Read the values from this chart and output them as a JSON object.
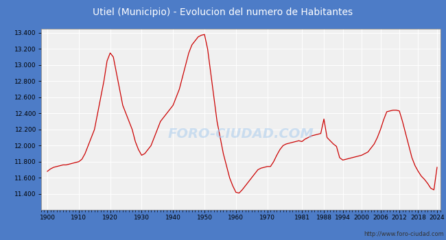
{
  "title": "Utiel (Municipio) - Evolucion del numero de Habitantes",
  "title_bg_color": "#4d7cc7",
  "title_font_color": "white",
  "title_fontsize": 10,
  "line_color": "#cc0000",
  "outer_bg_color": "#4d7cc7",
  "plot_bg_color": "#f0f0f0",
  "grid_color": "white",
  "footer_text": "http://www.foro-ciudad.com",
  "watermark": "FORO-CIUDAD.COM",
  "ylim": [
    11200,
    13450
  ],
  "ytick_labels": [
    "11.400",
    "11.600",
    "11.800",
    "12.000",
    "12.200",
    "12.400",
    "12.600",
    "12.800",
    "13.000",
    "13.200",
    "13.400"
  ],
  "ytick_values": [
    11400,
    11600,
    11800,
    12000,
    12200,
    12400,
    12600,
    12800,
    13000,
    13200,
    13400
  ],
  "xtick_labels": [
    "1900",
    "1910",
    "1920",
    "1930",
    "1940",
    "1950",
    "1960",
    "1970",
    "1981",
    "1988",
    "1994",
    "2000",
    "2006",
    "2012",
    "2018",
    "2024"
  ],
  "xtick_values": [
    1900,
    1910,
    1920,
    1930,
    1940,
    1950,
    1960,
    1970,
    1981,
    1988,
    1994,
    2000,
    2006,
    2012,
    2018,
    2024
  ],
  "xlim": [
    1898,
    2025
  ],
  "data": {
    "years": [
      1900,
      1901,
      1902,
      1903,
      1904,
      1905,
      1906,
      1907,
      1908,
      1909,
      1910,
      1911,
      1912,
      1913,
      1914,
      1915,
      1916,
      1917,
      1918,
      1919,
      1920,
      1921,
      1922,
      1923,
      1924,
      1925,
      1926,
      1927,
      1928,
      1929,
      1930,
      1931,
      1932,
      1933,
      1934,
      1935,
      1936,
      1937,
      1938,
      1939,
      1940,
      1941,
      1942,
      1943,
      1944,
      1945,
      1946,
      1947,
      1948,
      1949,
      1950,
      1951,
      1952,
      1953,
      1954,
      1955,
      1956,
      1957,
      1958,
      1959,
      1960,
      1961,
      1962,
      1963,
      1964,
      1965,
      1966,
      1967,
      1968,
      1969,
      1970,
      1971,
      1972,
      1973,
      1974,
      1975,
      1976,
      1977,
      1978,
      1979,
      1980,
      1981,
      1982,
      1983,
      1984,
      1985,
      1986,
      1987,
      1988,
      1989,
      1990,
      1991,
      1992,
      1993,
      1994,
      1995,
      1996,
      1997,
      1998,
      1999,
      2000,
      2001,
      2002,
      2003,
      2004,
      2005,
      2006,
      2007,
      2008,
      2009,
      2010,
      2011,
      2012,
      2013,
      2014,
      2015,
      2016,
      2017,
      2018,
      2019,
      2020,
      2021,
      2022,
      2023,
      2024
    ],
    "population": [
      11680,
      11710,
      11730,
      11740,
      11750,
      11760,
      11760,
      11770,
      11780,
      11790,
      11800,
      11830,
      11900,
      12000,
      12100,
      12200,
      12400,
      12600,
      12800,
      13050,
      13150,
      13100,
      12900,
      12700,
      12500,
      12400,
      12300,
      12200,
      12050,
      11950,
      11880,
      11900,
      11950,
      12000,
      12100,
      12200,
      12300,
      12350,
      12400,
      12450,
      12500,
      12600,
      12700,
      12850,
      13000,
      13150,
      13250,
      13300,
      13350,
      13370,
      13380,
      13200,
      12900,
      12600,
      12300,
      12100,
      11900,
      11750,
      11600,
      11500,
      11420,
      11410,
      11450,
      11500,
      11550,
      11600,
      11650,
      11700,
      11720,
      11730,
      11740,
      11740,
      11800,
      11880,
      11950,
      12000,
      12020,
      12030,
      12040,
      12050,
      12060,
      12050,
      12080,
      12100,
      12120,
      12130,
      12140,
      12150,
      12330,
      12100,
      12060,
      12020,
      11990,
      11850,
      11820,
      11830,
      11840,
      11850,
      11860,
      11870,
      11880,
      11900,
      11920,
      11970,
      12020,
      12100,
      12200,
      12320,
      12420,
      12430,
      12440,
      12440,
      12430,
      12300,
      12150,
      12000,
      11850,
      11750,
      11680,
      11620,
      11580,
      11530,
      11470,
      11450,
      11730
    ]
  }
}
